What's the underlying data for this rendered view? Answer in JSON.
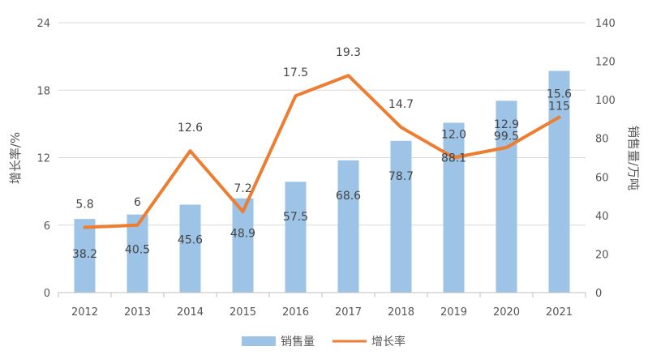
{
  "chart_data": {
    "type": "bar+line",
    "categories": [
      "2012",
      "2013",
      "2014",
      "2015",
      "2016",
      "2017",
      "2018",
      "2019",
      "2020",
      "2021"
    ],
    "series": [
      {
        "name": "销售量",
        "type": "bar",
        "axis": "right",
        "values": [
          38.2,
          40.5,
          45.6,
          48.9,
          57.5,
          68.6,
          78.7,
          88.1,
          99.5,
          115
        ],
        "labels": [
          "38.2",
          "40.5",
          "45.6",
          "48.9",
          "57.5",
          "68.6",
          "78.7",
          "88.1",
          "99.5",
          "115"
        ],
        "color": "#9dc3e6"
      },
      {
        "name": "增长率",
        "type": "line",
        "axis": "left",
        "values": [
          5.8,
          6,
          12.6,
          7.2,
          17.5,
          19.3,
          14.7,
          12.0,
          12.9,
          15.6
        ],
        "labels": [
          "5.8",
          "6",
          "12.6",
          "7.2",
          "17.5",
          "19.3",
          "14.7",
          "12.0",
          "12.9",
          "15.6"
        ],
        "color": "#ed7d31"
      }
    ],
    "y_left": {
      "label": "增长率/%",
      "ylim": [
        0,
        24
      ],
      "ticks": [
        "0",
        "6",
        "12",
        "18",
        "24"
      ]
    },
    "y_right": {
      "label": "销售量/万吨",
      "ylim": [
        0,
        140
      ],
      "ticks": [
        "0",
        "20",
        "40",
        "60",
        "80",
        "100",
        "120",
        "140"
      ]
    },
    "legend": {
      "position": "bottom",
      "entries": [
        "销售量",
        "增长率"
      ]
    },
    "grid": true
  }
}
